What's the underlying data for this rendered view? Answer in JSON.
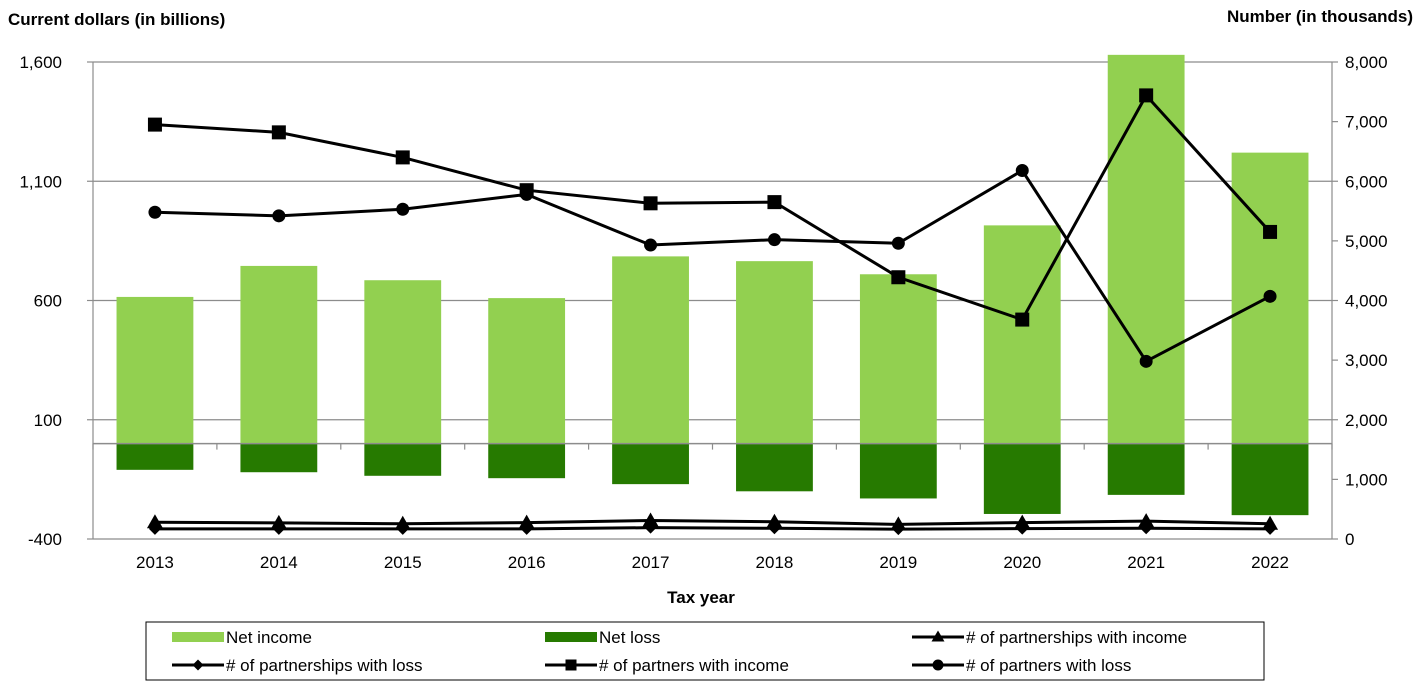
{
  "chart_data": {
    "type": "bar",
    "title": "",
    "y_left_label": "Current dollars (in billions)",
    "y_right_label": "Number (in thousands)",
    "xlabel": "Tax year",
    "categories": [
      "2013",
      "2014",
      "2015",
      "2016",
      "2017",
      "2018",
      "2019",
      "2020",
      "2021",
      "2022"
    ],
    "y_left": {
      "range": [
        -400,
        1600
      ],
      "ticks": [
        -400,
        100,
        600,
        1100,
        1600
      ],
      "tick_labels": [
        "-400",
        "100",
        "600",
        "1,100",
        "1,600"
      ]
    },
    "y_right": {
      "range": [
        0,
        8000
      ],
      "ticks": [
        0,
        1000,
        2000,
        3000,
        4000,
        5000,
        6000,
        7000,
        8000
      ],
      "tick_labels": [
        "0",
        "1,000",
        "2,000",
        "3,000",
        "4,000",
        "5,000",
        "6,000",
        "7,000",
        "8,000"
      ]
    },
    "grid": true,
    "legend_position": "bottom",
    "bar_series": [
      {
        "name": "Net income",
        "axis": "left",
        "color": "#92D050",
        "values": [
          615,
          745,
          685,
          610,
          785,
          765,
          710,
          915,
          1630,
          1220
        ]
      },
      {
        "name": "Net loss",
        "axis": "left",
        "color": "#267A00",
        "values": [
          -110,
          -120,
          -135,
          -145,
          -170,
          -200,
          -230,
          -295,
          -215,
          -300
        ]
      }
    ],
    "line_series": [
      {
        "name": "# of partnerships with income",
        "axis": "right",
        "marker": "triangle",
        "values": [
          280,
          270,
          255,
          275,
          310,
          290,
          245,
          275,
          300,
          255
        ]
      },
      {
        "name": "# of partnerships with loss",
        "axis": "right",
        "marker": "diamond",
        "values": [
          170,
          170,
          170,
          170,
          190,
          180,
          165,
          175,
          180,
          170
        ]
      },
      {
        "name": "# of partners with income",
        "axis": "right",
        "marker": "square",
        "values": [
          6950,
          6820,
          6400,
          5850,
          5630,
          5650,
          4390,
          3680,
          7440,
          5150
        ]
      },
      {
        "name": "# of partners with loss",
        "axis": "right",
        "marker": "circle",
        "values": [
          5480,
          5420,
          5530,
          5780,
          4930,
          5020,
          4960,
          6180,
          2980,
          4070
        ]
      }
    ]
  }
}
